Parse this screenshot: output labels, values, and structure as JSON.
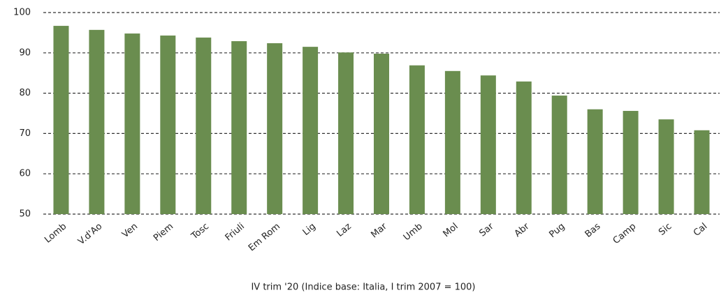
{
  "chart_data": {
    "type": "bar",
    "x_label": "IV trim '20 (Indice base: Italia, I trim 2007 = 100)",
    "categories": [
      "Lomb",
      "V.d'Ao",
      "Ven",
      "Piem",
      "Tosc",
      "Friuli",
      "Em Rom",
      "Lig",
      "Laz",
      "Mar",
      "Umb",
      "Mol",
      "Sar",
      "Abr",
      "Pug",
      "Bas",
      "Camp",
      "Sic",
      "Cal"
    ],
    "values": [
      96.7,
      95.7,
      94.8,
      94.3,
      93.8,
      92.9,
      92.4,
      91.5,
      90.1,
      89.8,
      86.9,
      85.5,
      84.4,
      82.9,
      79.4,
      76,
      75.6,
      73.5,
      70.8
    ],
    "color": "#6a8d4f",
    "ylim": [
      50,
      100
    ],
    "yticks": [
      50,
      60,
      70,
      80,
      90,
      100
    ],
    "grid": true
  }
}
